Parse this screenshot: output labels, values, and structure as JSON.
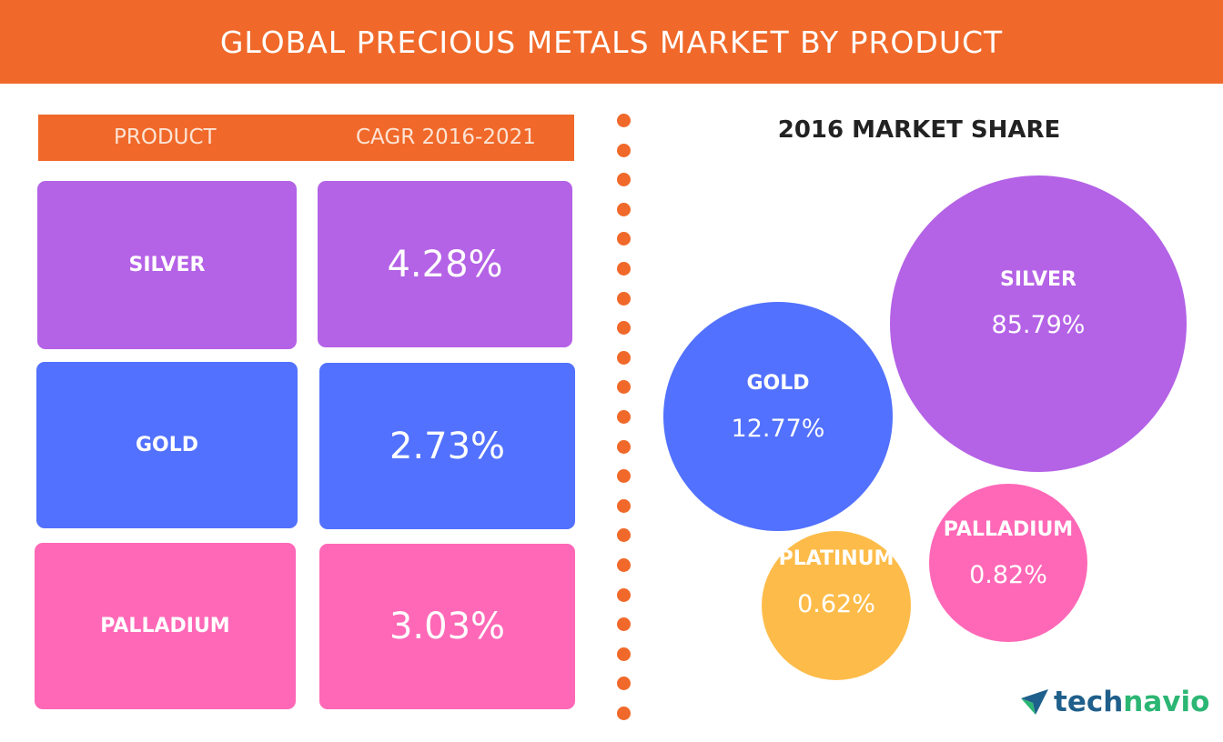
{
  "title": "GLOBAL PRECIOUS METALS MARKET BY PRODUCT",
  "colors": {
    "accent": "#f0692a",
    "silver": "#b462e6",
    "gold": "#5271fe",
    "palladium": "#ff68b7",
    "platinum": "#fdbc4a"
  },
  "table": {
    "header_product": "PRODUCT",
    "header_cagr": "CAGR 2016-2021",
    "rows": [
      {
        "product": "SILVER",
        "cagr": "4.28%"
      },
      {
        "product": "GOLD",
        "cagr": "2.73%"
      },
      {
        "product": "PALLADIUM",
        "cagr": "3.03%"
      }
    ]
  },
  "chart_data": {
    "type": "bubble",
    "title": "2016 MARKET SHARE",
    "categories": [
      "SILVER",
      "GOLD",
      "PALLADIUM",
      "PLATINUM"
    ],
    "values": [
      85.79,
      12.77,
      0.82,
      0.62
    ],
    "labels": [
      "85.79%",
      "12.77%",
      "0.82%",
      "0.62%"
    ],
    "unit": "%"
  },
  "logo": {
    "part1": "tech",
    "part2": "navio"
  }
}
